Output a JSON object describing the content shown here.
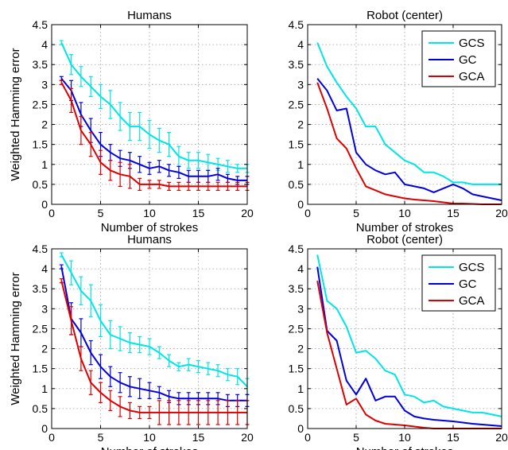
{
  "chart_data": [
    {
      "type": "line",
      "title": "Humans",
      "xlabel": "Number of strokes",
      "ylabel": "Weighted Hamming error",
      "xlim": [
        0,
        20
      ],
      "ylim": [
        0,
        4.5
      ],
      "xticks": [
        "0",
        "5",
        "10",
        "15",
        "20"
      ],
      "yticks": [
        "0",
        "0.5",
        "1",
        "1.5",
        "2",
        "2.5",
        "3",
        "3.5",
        "4",
        "4.5"
      ],
      "grid": true,
      "legend": false,
      "x": [
        1,
        2,
        3,
        4,
        5,
        6,
        7,
        8,
        9,
        10,
        11,
        12,
        13,
        14,
        15,
        16,
        17,
        18,
        19,
        20
      ],
      "series": [
        {
          "name": "GCS",
          "color": "#00e5e5",
          "values": [
            4.05,
            3.5,
            3.2,
            2.95,
            2.7,
            2.5,
            2.2,
            1.95,
            1.95,
            1.75,
            1.6,
            1.5,
            1.2,
            1.1,
            1.1,
            1.05,
            1.0,
            0.95,
            0.9,
            0.9
          ],
          "errors": [
            0.05,
            0.25,
            0.25,
            0.25,
            0.3,
            0.35,
            0.35,
            0.35,
            0.35,
            0.35,
            0.3,
            0.3,
            0.25,
            0.2,
            0.2,
            0.2,
            0.15,
            0.15,
            0.1,
            0.1
          ]
        },
        {
          "name": "GC",
          "color": "#0000dd",
          "values": [
            3.15,
            2.85,
            2.25,
            1.85,
            1.5,
            1.3,
            1.15,
            1.1,
            1.0,
            0.9,
            0.95,
            0.85,
            0.8,
            0.7,
            0.7,
            0.7,
            0.75,
            0.65,
            0.6,
            0.6
          ],
          "errors": [
            0.05,
            0.25,
            0.3,
            0.3,
            0.3,
            0.2,
            0.2,
            0.2,
            0.2,
            0.15,
            0.15,
            0.15,
            0.15,
            0.15,
            0.15,
            0.15,
            0.15,
            0.1,
            0.1,
            0.1
          ]
        },
        {
          "name": "GCA",
          "color": "#dd0000",
          "values": [
            3.05,
            2.6,
            1.85,
            1.5,
            1.05,
            0.85,
            0.75,
            0.7,
            0.5,
            0.5,
            0.5,
            0.45,
            0.45,
            0.45,
            0.45,
            0.45,
            0.45,
            0.45,
            0.45,
            0.45
          ],
          "errors": [
            0.05,
            0.3,
            0.35,
            0.3,
            0.3,
            0.25,
            0.3,
            0.3,
            0.15,
            0.1,
            0.1,
            0.1,
            0.1,
            0.1,
            0.1,
            0.1,
            0.1,
            0.1,
            0.1,
            0.1
          ]
        }
      ]
    },
    {
      "type": "line",
      "title": "Robot (center)",
      "xlabel": "Number of strokes",
      "ylabel": "",
      "xlim": [
        0,
        20
      ],
      "ylim": [
        0,
        4.5
      ],
      "xticks": [
        "0",
        "5",
        "10",
        "15",
        "20"
      ],
      "yticks": [
        "0",
        "0.5",
        "1",
        "1.5",
        "2",
        "2.5",
        "3",
        "3.5",
        "4",
        "4.5"
      ],
      "grid": true,
      "legend": "top-right",
      "x": [
        1,
        2,
        3,
        4,
        5,
        6,
        7,
        8,
        9,
        10,
        11,
        12,
        13,
        14,
        15,
        16,
        17,
        18,
        19,
        20
      ],
      "series": [
        {
          "name": "GCS",
          "color": "#00e5e5",
          "values": [
            4.05,
            3.45,
            3.05,
            2.7,
            2.4,
            1.95,
            1.95,
            1.5,
            1.3,
            1.1,
            1.0,
            0.8,
            0.8,
            0.7,
            0.55,
            0.55,
            0.5,
            0.5,
            0.5,
            0.5
          ]
        },
        {
          "name": "GC",
          "color": "#0000dd",
          "values": [
            3.15,
            2.85,
            2.35,
            2.4,
            1.3,
            1.0,
            0.85,
            0.75,
            0.8,
            0.5,
            0.45,
            0.4,
            0.3,
            0.4,
            0.5,
            0.4,
            0.25,
            0.2,
            0.15,
            0.1
          ]
        },
        {
          "name": "GCA",
          "color": "#dd0000",
          "values": [
            3.05,
            2.4,
            1.65,
            1.4,
            0.9,
            0.45,
            0.35,
            0.25,
            0.2,
            0.15,
            0.12,
            0.1,
            0.08,
            0.05,
            0.02,
            0.02,
            0.01,
            0.0,
            0.0,
            0.0
          ]
        }
      ]
    },
    {
      "type": "line",
      "title": "Humans",
      "xlabel": "Number of strokes",
      "ylabel": "Weighted Hamming error",
      "xlim": [
        0,
        20
      ],
      "ylim": [
        0,
        4.5
      ],
      "xticks": [
        "0",
        "5",
        "10",
        "15",
        "20"
      ],
      "yticks": [
        "0",
        "0.5",
        "1",
        "1.5",
        "2",
        "2.5",
        "3",
        "3.5",
        "4",
        "4.5"
      ],
      "grid": true,
      "legend": false,
      "x": [
        1,
        2,
        3,
        4,
        5,
        6,
        7,
        8,
        9,
        10,
        11,
        12,
        13,
        14,
        15,
        16,
        17,
        18,
        19,
        20
      ],
      "series": [
        {
          "name": "GCS",
          "color": "#00e5e5",
          "values": [
            4.35,
            3.9,
            3.45,
            3.2,
            2.7,
            2.35,
            2.25,
            2.15,
            2.1,
            2.05,
            1.9,
            1.7,
            1.55,
            1.6,
            1.55,
            1.5,
            1.45,
            1.35,
            1.3,
            1.05
          ],
          "errors": [
            0.05,
            0.3,
            0.35,
            0.4,
            0.4,
            0.35,
            0.3,
            0.25,
            0.2,
            0.2,
            0.15,
            0.15,
            0.1,
            0.15,
            0.15,
            0.15,
            0.15,
            0.15,
            0.2,
            0.2
          ]
        },
        {
          "name": "GC",
          "color": "#0000dd",
          "values": [
            4.05,
            2.75,
            2.4,
            1.9,
            1.55,
            1.3,
            1.15,
            1.05,
            1.0,
            0.95,
            0.9,
            0.8,
            0.75,
            0.75,
            0.75,
            0.75,
            0.75,
            0.7,
            0.7,
            0.7
          ],
          "errors": [
            0.05,
            0.4,
            0.35,
            0.3,
            0.3,
            0.25,
            0.25,
            0.25,
            0.25,
            0.2,
            0.15,
            0.15,
            0.15,
            0.15,
            0.15,
            0.15,
            0.15,
            0.15,
            0.15,
            0.15
          ]
        },
        {
          "name": "GCA",
          "color": "#dd0000",
          "values": [
            3.7,
            2.7,
            1.75,
            1.15,
            0.9,
            0.7,
            0.55,
            0.45,
            0.4,
            0.4,
            0.4,
            0.4,
            0.4,
            0.4,
            0.4,
            0.4,
            0.4,
            0.4,
            0.4,
            0.4
          ],
          "errors": [
            0.05,
            0.35,
            0.3,
            0.3,
            0.25,
            0.25,
            0.25,
            0.2,
            0.15,
            0.15,
            0.3,
            0.3,
            0.3,
            0.3,
            0.3,
            0.3,
            0.3,
            0.3,
            0.3,
            0.3
          ]
        }
      ]
    },
    {
      "type": "line",
      "title": "Robot (center)",
      "xlabel": "Number of strokes",
      "ylabel": "",
      "xlim": [
        0,
        20
      ],
      "ylim": [
        0,
        4.5
      ],
      "xticks": [
        "0",
        "5",
        "10",
        "15",
        "20"
      ],
      "yticks": [
        "0",
        "0.5",
        "1",
        "1.5",
        "2",
        "2.5",
        "3",
        "3.5",
        "4",
        "4.5"
      ],
      "grid": true,
      "legend": "top-right",
      "x": [
        1,
        2,
        3,
        4,
        5,
        6,
        7,
        8,
        9,
        10,
        11,
        12,
        13,
        14,
        15,
        16,
        17,
        18,
        19,
        20
      ],
      "series": [
        {
          "name": "GCS",
          "color": "#00e5e5",
          "values": [
            4.35,
            3.2,
            3.0,
            2.55,
            1.9,
            1.95,
            1.75,
            1.45,
            1.35,
            0.85,
            0.8,
            0.65,
            0.7,
            0.55,
            0.5,
            0.45,
            0.4,
            0.4,
            0.35,
            0.3
          ]
        },
        {
          "name": "GC",
          "color": "#0000dd",
          "values": [
            4.05,
            2.45,
            2.2,
            1.2,
            0.85,
            1.25,
            0.7,
            0.8,
            0.8,
            0.45,
            0.3,
            0.25,
            0.22,
            0.2,
            0.18,
            0.15,
            0.12,
            0.1,
            0.08,
            0.06
          ]
        },
        {
          "name": "GCA",
          "color": "#dd0000",
          "values": [
            3.7,
            2.4,
            1.5,
            0.6,
            0.75,
            0.35,
            0.2,
            0.12,
            0.1,
            0.08,
            0.05,
            0.02,
            0.0,
            0.0,
            0.0,
            0.0,
            0.0,
            0.0,
            0.0,
            0.0
          ]
        }
      ]
    }
  ]
}
